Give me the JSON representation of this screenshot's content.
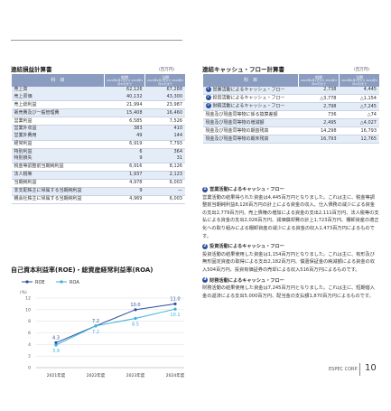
{
  "income": {
    "title": "連結損益計算書",
    "unit": "(百万円)",
    "head": [
      "科　目",
      "前期",
      "2022年4月1日から 2023年3月31日まで",
      "当期",
      "2023年4月1日から 2024年3月31日まで"
    ],
    "groups": [
      [
        [
          "売上高",
          "62,126",
          "67,288"
        ],
        [
          "売上原価",
          "40,132",
          "43,300"
        ]
      ],
      [
        [
          "売上総利益",
          "21,994",
          "23,987"
        ]
      ],
      [
        [
          "販売費及び一般管理費",
          "15,408",
          "16,460"
        ]
      ],
      [
        [
          "営業利益",
          "6,585",
          "7,526"
        ]
      ],
      [
        [
          "営業外収益",
          "383",
          "410"
        ],
        [
          "営業外費用",
          "49",
          "144"
        ]
      ],
      [
        [
          "経常利益",
          "6,919",
          "7,793"
        ]
      ],
      [
        [
          "特別利益",
          "6",
          "364"
        ],
        [
          "特別損失",
          "9",
          "31"
        ]
      ],
      [
        [
          "税金等調整前当期純利益",
          "6,916",
          "8,126"
        ]
      ],
      [
        [
          "法人税等",
          "1,937",
          "2,123"
        ]
      ],
      [
        [
          "当期純利益",
          "4,978",
          "6,003"
        ]
      ],
      [
        [
          "非支配株主に帰属する当期純利益",
          "9",
          "—"
        ]
      ],
      [
        [
          "親会社株主に帰属する当期純利益",
          "4,969",
          "6,003"
        ]
      ]
    ]
  },
  "cashflow": {
    "title": "連結キャッシュ・フロー計算書",
    "unit": "(百万円)",
    "head": [
      "科　目",
      "前期",
      "2022年4月1日から 2023年3月31日まで",
      "当期",
      "2023年4月1日から 2024年3月31日まで"
    ],
    "rows": [
      {
        "marker": "1",
        "label": "営業活動によるキャッシュ・フロー",
        "prev": "2,738",
        "cur": "4,445"
      },
      {
        "marker": "2",
        "label": "投資活動によるキャッシュ・フロー",
        "prev": "△3,778",
        "cur": "△1,154"
      },
      {
        "marker": "3",
        "label": "財務活動によるキャッシュ・フロー",
        "prev": "2,798",
        "cur": "△7,245"
      },
      {
        "label": "現金及び現金同等物に係る換算差額",
        "prev": "736",
        "cur": "△74"
      },
      {
        "label": "現金及び現金同等物の増減額",
        "prev": "2,495",
        "cur": "△4,027"
      },
      {
        "label": "現金及び現金同等物の期首残高",
        "prev": "14,298",
        "cur": "16,793"
      },
      {
        "label": "現金及び現金同等物の期末残高",
        "prev": "16,793",
        "cur": "12,765"
      }
    ]
  },
  "notes": [
    {
      "marker": "1",
      "heading": "営業活動によるキャッシュ・フロー",
      "body": "営業活動の結果得られた資金は4,445百万円となりました。これは主に、税金等調整前当期純利益8,126百万円の計上による資金の収入、仕入債務の減少による資金の支出2,779百万円、売上債権の増加による資金の支出2,111百万円、法人税等の支払による資金の支出2,026百万円、減価償却費の計上1,723百万円、棚卸資産の適正化への取り組みによる棚卸資産の減少による資金の収入1,473百万円によるものです。"
    },
    {
      "marker": "2",
      "heading": "投資活動によるキャッシュ・フロー",
      "body": "投資活動の結果使用した資金は1,154百万円となりました。これは主に、有形及び無形固定資産の取得による支出2,182百万円、償還保証金の純減額による資金の収入504百万円、投資有価証券の売却による収入516百万円によるものです。"
    },
    {
      "marker": "3",
      "heading": "財務活動によるキャッシュ・フロー",
      "body": "財務活動の結果使用した資金は7,245百万円となりました。これは主に、短期借入金の返済による支出5,000百万円、配当金の支払額1,870百万円によるものです。"
    }
  ],
  "chart_data": {
    "type": "line",
    "title": "自己資本利益率(ROE)・総資産経常利益率(ROA)",
    "y_label": "(%)",
    "categories": [
      "2021年度",
      "2022年度",
      "2023年度",
      "2024年度"
    ],
    "series": [
      {
        "name": "ROE",
        "color": "#2b4f9e",
        "values": [
          4.3,
          7.2,
          10.0,
          11.0
        ],
        "value_labels": [
          "4.3",
          "7.2",
          "10.0",
          "11.0"
        ]
      },
      {
        "name": "ROA",
        "color": "#3ab0dc",
        "values": [
          3.9,
          7.2,
          8.5,
          10.1
        ],
        "value_labels": [
          "3.9",
          "7.2",
          "8.5",
          "10.1"
        ]
      }
    ],
    "ylim": [
      0,
      12
    ],
    "yticks": [
      0,
      2,
      4,
      6,
      8,
      10,
      12
    ],
    "grid": true
  },
  "footer": {
    "company": "ESPEC CORP.",
    "page": "10"
  }
}
